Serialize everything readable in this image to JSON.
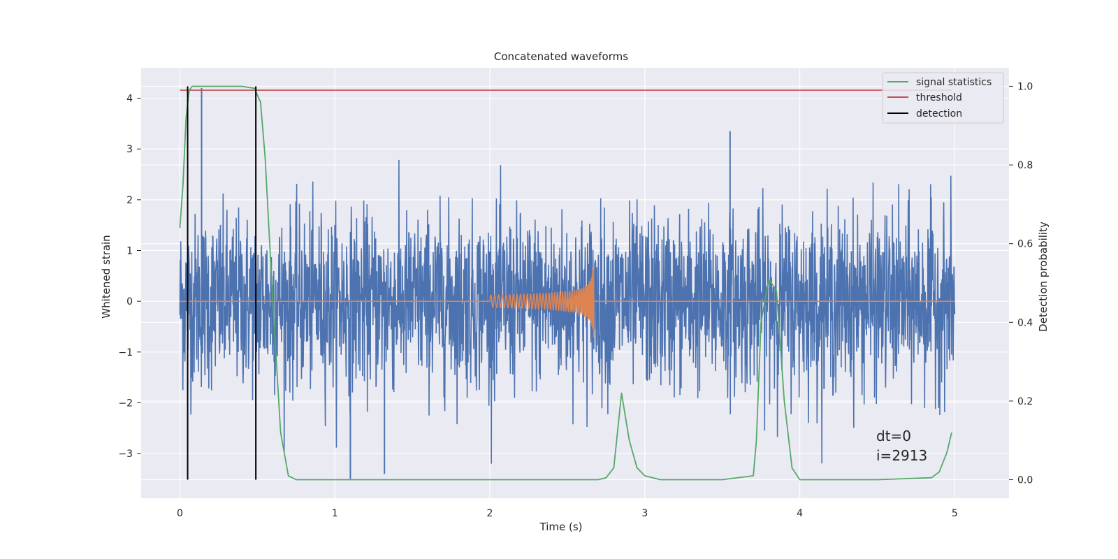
{
  "chart_data": {
    "type": "line",
    "title": "Concatenated waveforms",
    "xlabel": "Time (s)",
    "ylabel": "Whitened strain",
    "y2label": "Detection probability",
    "xlim": [
      -0.25,
      5.35
    ],
    "ylim": [
      -3.88,
      4.6
    ],
    "y2lim": [
      -0.047,
      1.047
    ],
    "x_ticks": [
      0,
      1,
      2,
      3,
      4,
      5
    ],
    "x_tick_labels": [
      "0",
      "1",
      "2",
      "3",
      "4",
      "5"
    ],
    "y_ticks": [
      -3,
      -2,
      -1,
      0,
      1,
      2,
      3,
      4
    ],
    "y_tick_labels": [
      "−3",
      "−2",
      "−1",
      "0",
      "1",
      "2",
      "3",
      "4"
    ],
    "y2_ticks": [
      0.0,
      0.2,
      0.4,
      0.6,
      0.8,
      1.0
    ],
    "y2_tick_labels": [
      "0.0",
      "0.2",
      "0.4",
      "0.6",
      "0.8",
      "1.0"
    ],
    "grid": true,
    "legend_position": "top-right",
    "legend": [
      "signal statistics",
      "threshold",
      "detection"
    ],
    "series": [
      {
        "name": "signal statistics",
        "axis": "right",
        "color": "#55a868",
        "x": [
          0.0,
          0.02,
          0.04,
          0.06,
          0.08,
          0.1,
          0.2,
          0.3,
          0.4,
          0.48,
          0.52,
          0.55,
          0.6,
          0.65,
          0.7,
          0.75,
          1.0,
          2.0,
          2.7,
          2.75,
          2.8,
          2.85,
          2.9,
          2.95,
          3.0,
          3.1,
          3.5,
          3.7,
          3.72,
          3.75,
          3.8,
          3.85,
          3.9,
          3.95,
          4.0,
          4.5,
          4.85,
          4.9,
          4.95,
          4.98
        ],
        "values": [
          0.64,
          0.75,
          0.92,
          0.99,
          1.0,
          1.0,
          1.0,
          1.0,
          1.0,
          0.995,
          0.96,
          0.82,
          0.45,
          0.12,
          0.01,
          0.0,
          0.0,
          0.0,
          0.0,
          0.005,
          0.03,
          0.22,
          0.1,
          0.03,
          0.01,
          0.0,
          0.0,
          0.01,
          0.1,
          0.4,
          0.51,
          0.48,
          0.2,
          0.03,
          0.0,
          0.0,
          0.005,
          0.02,
          0.07,
          0.12
        ]
      },
      {
        "name": "threshold",
        "axis": "right",
        "color": "#c44e52",
        "x": [
          0.0,
          4.98
        ],
        "values": [
          0.99,
          0.99
        ]
      },
      {
        "name": "detection",
        "axis": "right",
        "color": "#000000",
        "x": [
          0.05,
          0.49
        ],
        "values": [
          1.0,
          1.0
        ]
      },
      {
        "axis": "left",
        "color": "#4c72b0",
        "x": [
          0.0,
          5.0
        ],
        "peaks": [
          {
            "x": 0.14,
            "y": 4.2
          },
          {
            "x": 1.1,
            "y": -3.5
          },
          {
            "x": 3.55,
            "y": 3.35
          },
          {
            "x": 1.32,
            "y": -3.4
          }
        ]
      },
      {
        "axis": "left",
        "color": "#dd8452",
        "x": [
          0.0,
          2.0,
          2.67,
          5.0
        ],
        "values": [
          0,
          0,
          0.75,
          0
        ],
        "min_value": -0.72
      }
    ]
  },
  "annotation": {
    "line1": "dt=0",
    "line2": "i=2913"
  }
}
